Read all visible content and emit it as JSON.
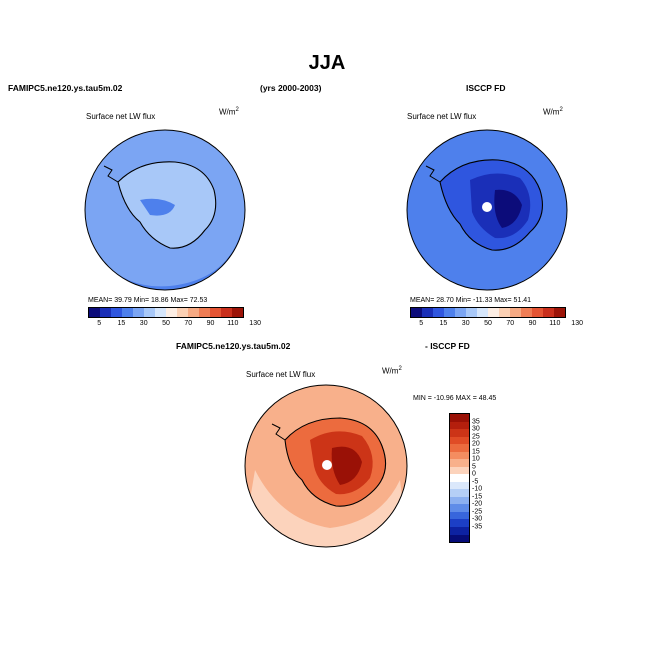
{
  "figure": {
    "season": "JJA",
    "model_case_top": "FAMIPC5.ne120.ys.tau5m.02",
    "years": "(yrs 2000-2003)",
    "obs_name": "ISCCP FD",
    "model_case_bottom": "FAMIPC5.ne120.ys.tau5m.02",
    "diff_label": "- ISCCP FD"
  },
  "panels": {
    "model": {
      "variable": "Surface net LW flux",
      "units_base": "W/m",
      "units_exp": "2",
      "stats_text": "MEAN=   39.79   Min=   18.86   Max=   72.53"
    },
    "obs": {
      "variable": "Surface net LW flux",
      "units_base": "W/m",
      "units_exp": "2",
      "stats_text": "MEAN=   28.70   Min=  -11.33   Max=   51.41"
    },
    "diff": {
      "variable": "Surface net LW flux",
      "units_base": "W/m",
      "units_exp": "2",
      "stats_text": "MIN = -10.96  MAX =  48.45"
    }
  },
  "chart_data": [
    {
      "type": "heatmap",
      "title": "FAMIPC5.ne120.ys.tau5m.02  Surface net LW flux (W/m2)",
      "projection": "south polar stereographic",
      "mean": 39.79,
      "min": 18.86,
      "max": 72.53,
      "levels": [
        5,
        15,
        30,
        50,
        70,
        90,
        110,
        130
      ]
    },
    {
      "type": "heatmap",
      "title": "ISCCP FD  Surface net LW flux (W/m2)",
      "projection": "south polar stereographic",
      "mean": 28.7,
      "min": -11.33,
      "max": 51.41,
      "levels": [
        5,
        15,
        30,
        50,
        70,
        90,
        110,
        130
      ]
    },
    {
      "type": "heatmap",
      "title": "FAMIPC5.ne120.ys.tau5m.02 - ISCCP FD  Surface net LW flux (W/m2)",
      "projection": "south polar stereographic",
      "min": -10.96,
      "max": 48.45,
      "levels": [
        -35,
        -30,
        -25,
        -20,
        -15,
        -10,
        -5,
        0,
        5,
        10,
        15,
        20,
        25,
        30,
        35
      ]
    }
  ],
  "colorbars": {
    "abs_ticks": [
      "5",
      "15",
      "30",
      "50",
      "70",
      "90",
      "110",
      "130"
    ],
    "abs_colors": [
      "#0c0c7a",
      "#1a2fb8",
      "#2f56df",
      "#4e80ec",
      "#7ba5f3",
      "#a8c8f8",
      "#d6e6fb",
      "#fdeee4",
      "#fbd0b4",
      "#f6aa84",
      "#ef7d55",
      "#e45433",
      "#c92f1c",
      "#9c1408"
    ],
    "diff_ticks": [
      "35",
      "30",
      "25",
      "20",
      "15",
      "10",
      "5",
      "0",
      "-5",
      "-10",
      "-15",
      "-20",
      "-25",
      "-30",
      "-35"
    ],
    "diff_colors": [
      "#9a1106",
      "#b41f0d",
      "#cc3417",
      "#e04c26",
      "#ec6b3e",
      "#f48d60",
      "#f8b08b",
      "#fcd3bc",
      "#ffffff",
      "#dbe8fb",
      "#b5cff6",
      "#8cb0f0",
      "#5f8ce8",
      "#3866dc",
      "#1c3fc6",
      "#0d22a2",
      "#060c78"
    ]
  },
  "map_colors": {
    "ocean_model": "#7ba5f3",
    "ocean_model_dark": "#4e80ec",
    "land_model": "#a8c8f8",
    "ocean_obs": "#4e80ec",
    "land_obs_1": "#2f56df",
    "land_obs_2": "#1a2fb8",
    "land_obs_3": "#0c0c7a",
    "diff_ocean": "#f8b08b",
    "diff_ocean_2": "#fcd3bc",
    "diff_land_1": "#ec6b3e",
    "diff_land_2": "#cc3417",
    "diff_land_3": "#9a1106"
  }
}
